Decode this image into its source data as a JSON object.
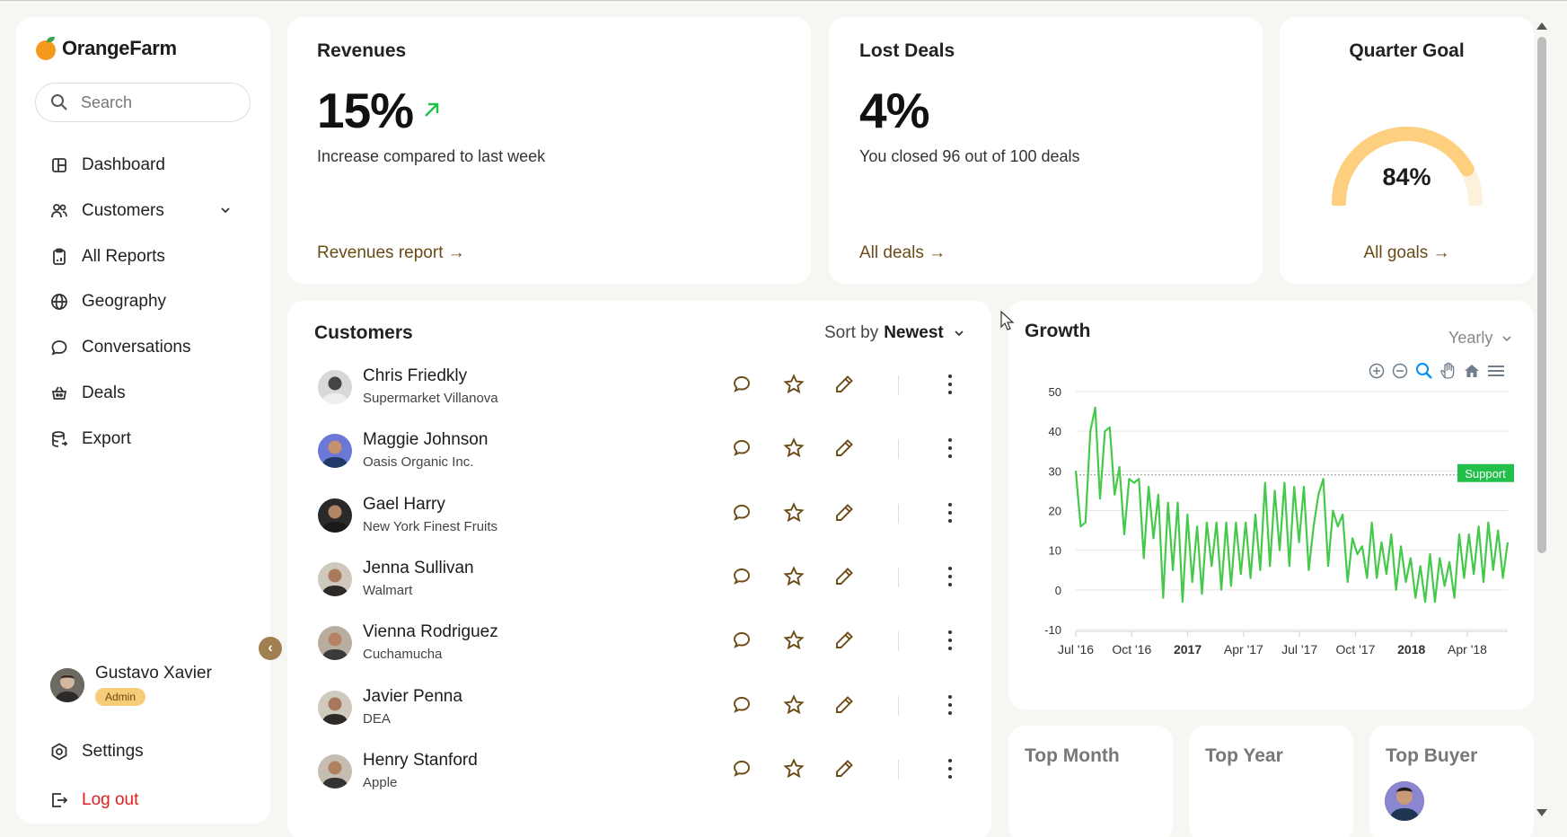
{
  "app": {
    "brand": "OrangeFarm"
  },
  "search": {
    "placeholder": "Search"
  },
  "nav": [
    {
      "label": "Dashboard",
      "icon": "dashboard-icon"
    },
    {
      "label": "Customers",
      "icon": "users-icon"
    },
    {
      "label": "All Reports",
      "icon": "clipboard-icon"
    },
    {
      "label": "Geography",
      "icon": "globe-icon"
    },
    {
      "label": "Conversations",
      "icon": "chat-icon"
    },
    {
      "label": "Deals",
      "icon": "basket-icon"
    },
    {
      "label": "Export",
      "icon": "database-icon"
    }
  ],
  "user": {
    "name": "Gustavo Xavier",
    "role": "Admin"
  },
  "settings": {
    "label": "Settings"
  },
  "logout": {
    "label": "Log out"
  },
  "revenues": {
    "title": "Revenues",
    "value": "15%",
    "desc": "Increase compared to last week",
    "link": "Revenues report →"
  },
  "lost": {
    "title": "Lost Deals",
    "value": "4%",
    "desc": "You closed 96 out of 100 deals",
    "link": "All deals →"
  },
  "goal": {
    "title": "Quarter Goal",
    "value": "84%",
    "percent": 84,
    "link": "All goals →"
  },
  "customers": {
    "title": "Customers",
    "sort_prefix": "Sort by",
    "sort_value": "Newest",
    "rows": [
      {
        "name": "Chris Friedkly",
        "company": "Supermarket Villanova"
      },
      {
        "name": "Maggie Johnson",
        "company": "Oasis Organic Inc."
      },
      {
        "name": "Gael Harry",
        "company": "New York Finest Fruits"
      },
      {
        "name": "Jenna Sullivan",
        "company": "Walmart"
      },
      {
        "name": "Vienna Rodriguez",
        "company": "Cuchamucha"
      },
      {
        "name": "Javier Penna",
        "company": "DEA"
      },
      {
        "name": "Henry Stanford",
        "company": "Apple"
      }
    ]
  },
  "growth": {
    "title": "Growth",
    "period": "Yearly",
    "annotation": "Support"
  },
  "chart_data": {
    "type": "line",
    "title": "Growth",
    "ylim": [
      -10,
      50
    ],
    "yticks": [
      50,
      40,
      30,
      20,
      10,
      0,
      -10
    ],
    "xticks": [
      "Jul '16",
      "Oct '16",
      "2017",
      "Apr '17",
      "Jul '17",
      "Oct '17",
      "2018",
      "Apr '18"
    ],
    "x_start": "Jul '16",
    "x_end": "Jun '18",
    "annotation": {
      "label": "Support",
      "y": 29
    },
    "series": [
      {
        "values": [
          30,
          16,
          17,
          40,
          46,
          23,
          40,
          41,
          24,
          31,
          14,
          28,
          27,
          28,
          8,
          26,
          13,
          24,
          -2,
          22,
          5,
          22,
          -3,
          19,
          2,
          16,
          -1,
          17,
          6,
          17,
          0,
          17,
          1,
          17,
          4,
          17,
          3,
          19,
          5,
          27,
          6,
          25,
          10,
          27,
          6,
          26,
          12,
          26,
          5,
          16,
          24,
          28,
          6,
          20,
          16,
          19,
          2,
          13,
          9,
          11,
          3,
          17,
          3,
          12,
          4,
          14,
          0,
          11,
          2,
          8,
          -2,
          6,
          -3,
          9,
          -3,
          8,
          1,
          7,
          -2,
          14,
          3,
          14,
          4,
          16,
          2,
          17,
          5,
          15,
          3,
          12
        ]
      }
    ],
    "series_color": "#44c94a",
    "grid": true
  },
  "bottom": {
    "top_month": "Top Month",
    "top_year": "Top Year",
    "top_buyer": "Top Buyer"
  }
}
